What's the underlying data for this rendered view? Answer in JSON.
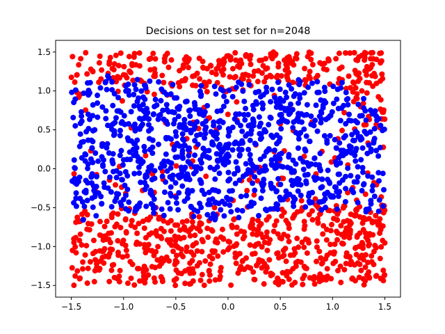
{
  "chart_data": {
    "type": "scatter",
    "title": "Decisions on test set for n=2048",
    "xlabel": "",
    "ylabel": "",
    "xlim": [
      -1.65,
      1.65
    ],
    "ylim": [
      -1.65,
      1.65
    ],
    "xticks": [
      -1.5,
      -1.0,
      -0.5,
      0.0,
      0.5,
      1.0,
      1.5
    ],
    "xtick_labels": [
      "−1.5",
      "−1.0",
      "−0.5",
      "0.0",
      "0.5",
      "1.0",
      "1.5"
    ],
    "yticks": [
      -1.5,
      -1.0,
      -0.5,
      0.0,
      0.5,
      1.0,
      1.5
    ],
    "ytick_labels": [
      "−1.5",
      "−1.0",
      "−0.5",
      "0.0",
      "0.5",
      "1.0",
      "1.5"
    ],
    "grid": false,
    "legend": "none",
    "n_points": 2048,
    "point_domain": {
      "x": [
        -1.5,
        1.5
      ],
      "y": [
        -1.5,
        1.5
      ]
    },
    "series": [
      {
        "color": "#ff0000",
        "class_region": "outside of the blue band (top strip above y≈1.2, bottom region below y≈−0.55, and the corners)"
      },
      {
        "color": "#0000ff",
        "class_region": "central band roughly −0.5 ≤ y ≤ 1.15 for x in [−1.5, 1.5], with red intrusions near the edges"
      }
    ],
    "decision_regions": [
      {
        "label": "blue",
        "x": [
          -1.5,
          1.5
        ],
        "y_upper_by_x": [
          [
            -1.5,
            1.1
          ],
          [
            -1.0,
            1.15
          ],
          [
            -0.5,
            1.0
          ],
          [
            0.0,
            1.05
          ],
          [
            0.5,
            1.1
          ],
          [
            1.0,
            1.15
          ],
          [
            1.5,
            0.6
          ]
        ],
        "y_lower_by_x": [
          [
            -1.5,
            -0.6
          ],
          [
            -1.0,
            -0.55
          ],
          [
            -0.5,
            -0.6
          ],
          [
            0.0,
            -0.75
          ],
          [
            0.5,
            -0.5
          ],
          [
            1.0,
            -0.45
          ],
          [
            1.5,
            -0.5
          ]
        ]
      }
    ]
  }
}
